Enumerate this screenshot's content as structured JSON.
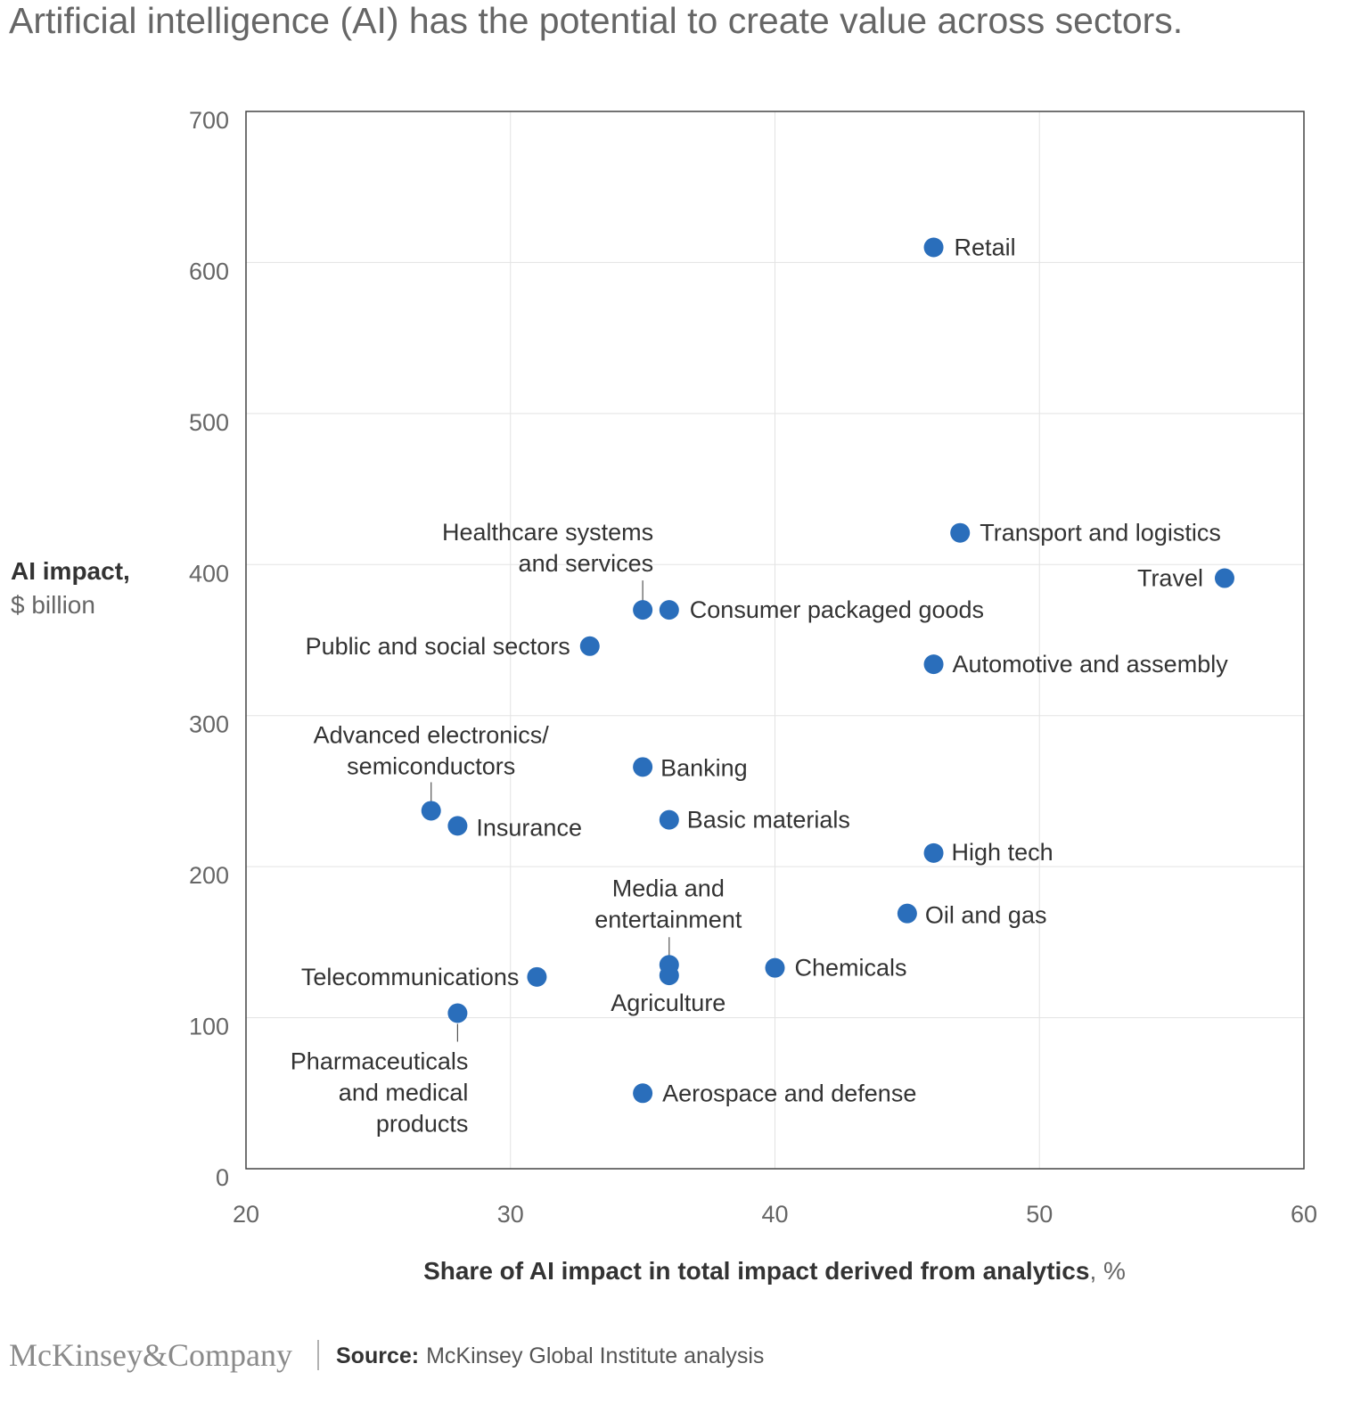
{
  "title": "Artificial intelligence (AI) has the potential to create value across sectors.",
  "footer": {
    "logo": "McKinsey&Company",
    "source_label": "Source:",
    "source_text": "McKinsey Global Institute analysis"
  },
  "chart_data": {
    "type": "scatter",
    "title": "Artificial intelligence (AI) has the potential to create value across sectors.",
    "xlabel": "Share of AI impact in total impact derived from analytics",
    "xlabel_unit": ", %",
    "ylabel": "AI impact,",
    "ylabel_unit": "$ billion",
    "xlim": [
      20,
      60
    ],
    "ylim": [
      0,
      700
    ],
    "xticks": [
      20,
      30,
      40,
      50,
      60
    ],
    "yticks": [
      0,
      100,
      200,
      300,
      400,
      500,
      600,
      700
    ],
    "grid": true,
    "marker_color": "#2a6ebb",
    "points": [
      {
        "label": "Retail",
        "x": 46,
        "y": 610
      },
      {
        "label": "Transport and logistics",
        "x": 47,
        "y": 421
      },
      {
        "label": "Travel",
        "x": 57,
        "y": 391
      },
      {
        "label": "Healthcare systems and services",
        "lines": [
          "Healthcare systems",
          "and services"
        ],
        "x": 35,
        "y": 370
      },
      {
        "label": "Consumer packaged goods",
        "x": 36,
        "y": 370
      },
      {
        "label": "Public and social sectors",
        "x": 33,
        "y": 346
      },
      {
        "label": "Automotive and assembly",
        "x": 46,
        "y": 334
      },
      {
        "label": "Banking",
        "x": 35,
        "y": 266
      },
      {
        "label": "Advanced electronics/semiconductors",
        "lines": [
          "Advanced electronics/",
          "semiconductors"
        ],
        "x": 27,
        "y": 237
      },
      {
        "label": "Insurance",
        "x": 28,
        "y": 227
      },
      {
        "label": "Basic materials",
        "x": 36,
        "y": 231
      },
      {
        "label": "High tech",
        "x": 46,
        "y": 209
      },
      {
        "label": "Oil and gas",
        "x": 45,
        "y": 169
      },
      {
        "label": "Media and entertainment",
        "lines": [
          "Media and",
          "entertainment"
        ],
        "x": 36,
        "y": 135
      },
      {
        "label": "Agriculture",
        "x": 36,
        "y": 128
      },
      {
        "label": "Chemicals",
        "x": 40,
        "y": 133
      },
      {
        "label": "Telecommunications",
        "x": 31,
        "y": 127
      },
      {
        "label": "Pharmaceuticals and medical products",
        "lines": [
          "Pharmaceuticals",
          "and medical",
          "products"
        ],
        "x": 28,
        "y": 103
      },
      {
        "label": "Aerospace and defense",
        "x": 35,
        "y": 50
      }
    ]
  }
}
